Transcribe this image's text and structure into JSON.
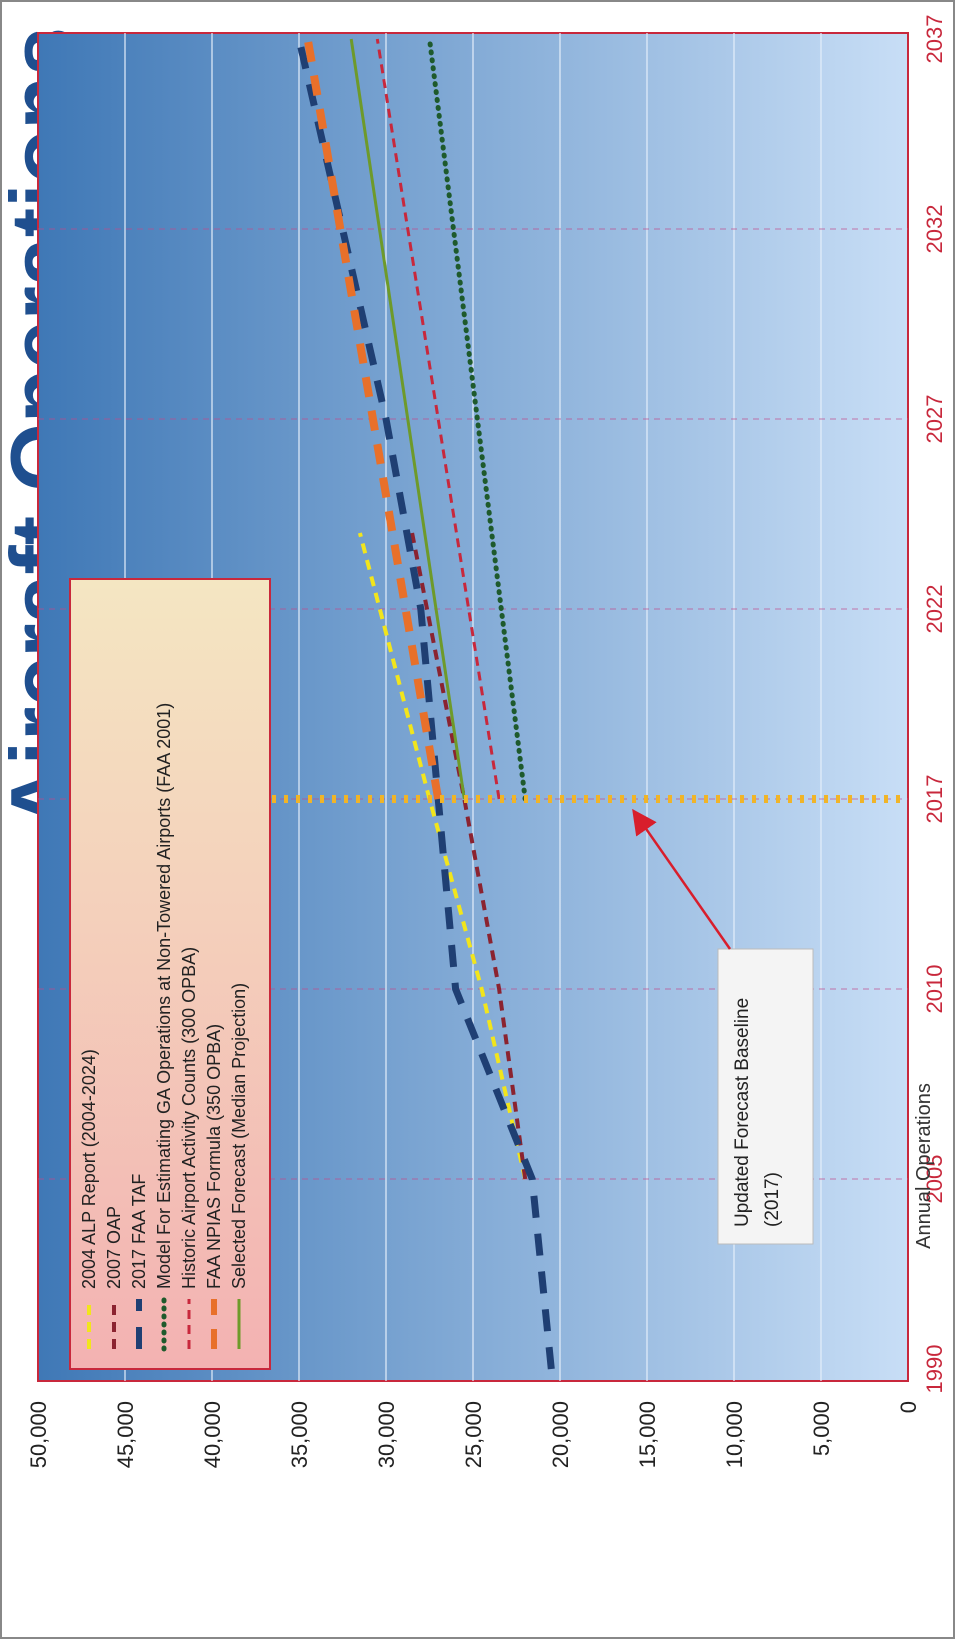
{
  "page": {
    "partial_title": "Aircraft Operations"
  },
  "chart_data": {
    "type": "line",
    "title": "",
    "xlabel": "",
    "ylabel": "Annual Operations",
    "ylim": [
      0,
      50000
    ],
    "yticks": [
      0,
      5000,
      10000,
      15000,
      20000,
      25000,
      30000,
      35000,
      40000,
      45000,
      50000
    ],
    "ytick_labels": [
      "0",
      "5,000",
      "10,000",
      "15,000",
      "20,000",
      "25,000",
      "30,000",
      "35,000",
      "40,000",
      "45,000",
      "50,000"
    ],
    "xticks": [
      1990,
      2005,
      2010,
      2017,
      2022,
      2027,
      2032,
      2037
    ],
    "xtick_labels": [
      "1990",
      "2005",
      "2010",
      "2017",
      "2022",
      "2027",
      "2032",
      "2037"
    ],
    "x_axis_note": "categorical-like spacing between printed years",
    "grid": true,
    "legend_position": "top-left",
    "baseline": {
      "x": 2017,
      "label": "Updated Forecast Baseline (2017)"
    },
    "series": [
      {
        "name": "2004 ALP Report (2004-2024)",
        "color": "#f2e51c",
        "style": "dashed",
        "x": [
          2005,
          2010,
          2017,
          2024
        ],
        "y": [
          22000,
          24500,
          27500,
          31500
        ]
      },
      {
        "name": "2007 OAP",
        "color": "#8b2330",
        "style": "dashed",
        "x": [
          2005,
          2010,
          2017,
          2024
        ],
        "y": [
          22000,
          23500,
          25500,
          28500
        ]
      },
      {
        "name": "2017 FAA TAF",
        "color": "#1f3f73",
        "style": "long-dashed",
        "x": [
          1990,
          2005,
          2010,
          2017,
          2022,
          2027,
          2032,
          2037
        ],
        "y": [
          20500,
          21600,
          26000,
          27000,
          28000,
          30000,
          32500,
          35000
        ]
      },
      {
        "name": "Model For Estimating GA Operations at Non-Towered Airports (FAA 2001)",
        "color": "#1e5a2c",
        "style": "dotted",
        "x": [
          2017,
          2037
        ],
        "y": [
          22000,
          27500
        ]
      },
      {
        "name": "Historic Airport Activity Counts (300 OPBA)",
        "color": "#c8283c",
        "style": "dashed-thin",
        "x": [
          2017,
          2037
        ],
        "y": [
          23500,
          30500
        ]
      },
      {
        "name": "FAA NPIAS Formula (350 OPBA)",
        "color": "#e8702a",
        "style": "dashed-thick",
        "x": [
          2017,
          2037
        ],
        "y": [
          27000,
          34500
        ]
      },
      {
        "name": "Selected Forecast (Median Projection)",
        "color": "#6e9a2a",
        "style": "solid",
        "x": [
          2017,
          2037
        ],
        "y": [
          25500,
          32000
        ]
      }
    ]
  }
}
